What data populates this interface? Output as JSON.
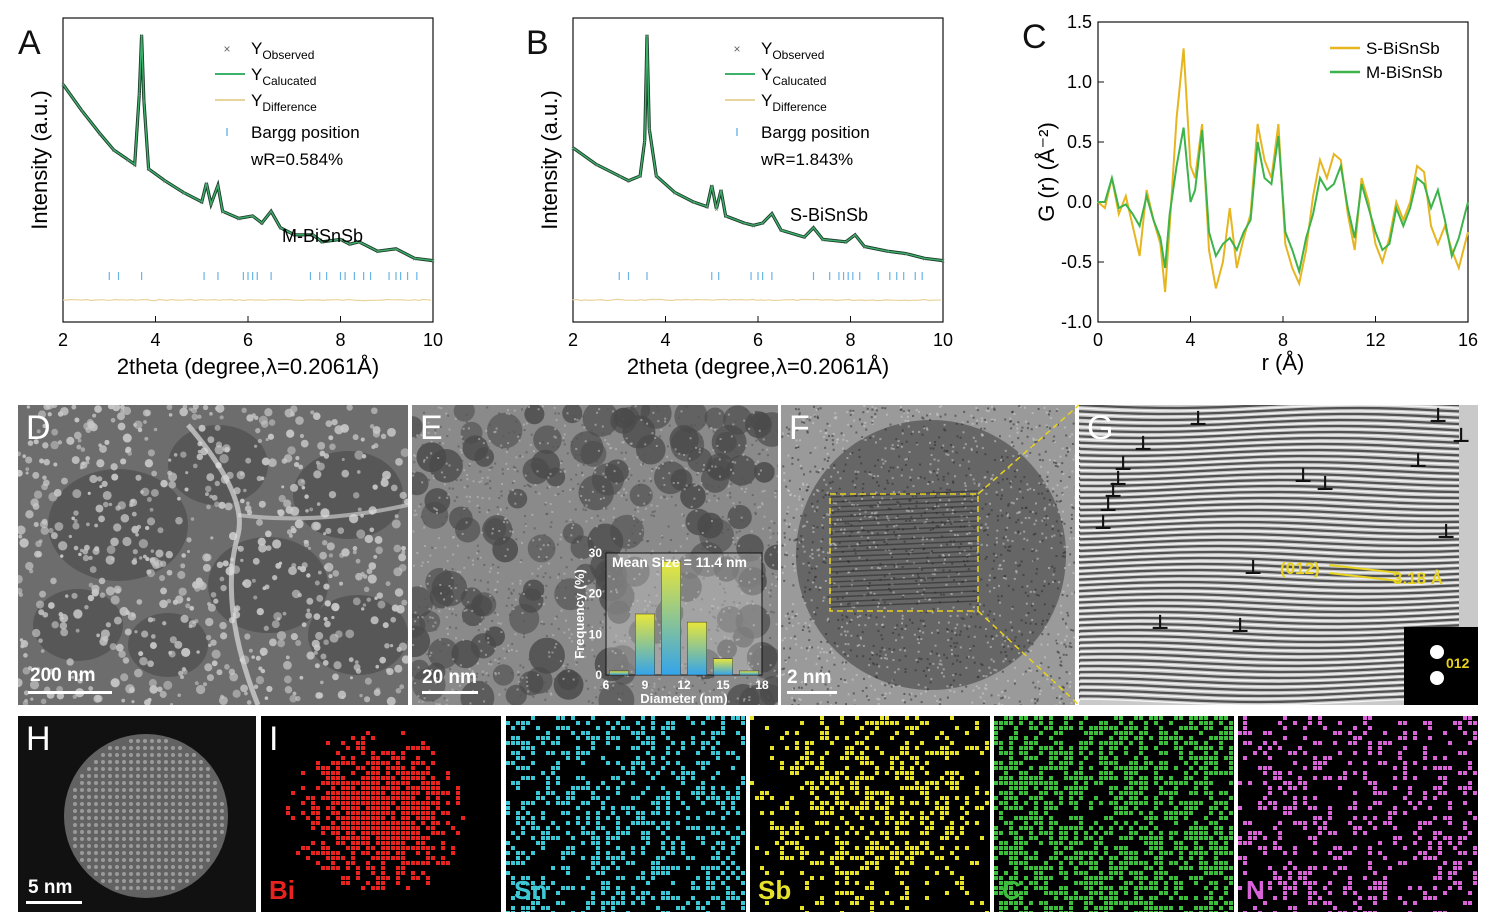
{
  "panels": {
    "A": "A",
    "B": "B",
    "C": "C",
    "D": "D",
    "E": "E",
    "F": "F",
    "G": "G",
    "H": "H",
    "I": "I"
  },
  "legend_xrd": {
    "observed": "Y",
    "observed_sub": "Observed",
    "calculated": "Y",
    "calculated_sub": "Calucated",
    "difference": "Y",
    "difference_sub": "Difference",
    "bragg": "Bargg position"
  },
  "chart_data": [
    {
      "id": "A",
      "type": "line",
      "xlabel": "2theta (degree,λ=0.2061Å)",
      "ylabel": "Intensity (a.u.)",
      "xlim": [
        2,
        10
      ],
      "xticks": [
        "2",
        "4",
        "6",
        "8",
        "10"
      ],
      "sample_label": "M-BiSnSb",
      "wr": "wR=0.584%",
      "baseline": [
        [
          2,
          0.79
        ],
        [
          2.4,
          0.68
        ],
        [
          2.8,
          0.58
        ],
        [
          3.1,
          0.51
        ],
        [
          3.4,
          0.47
        ],
        [
          3.55,
          0.45
        ],
        [
          3.65,
          0.75
        ],
        [
          3.7,
          1.0
        ],
        [
          3.75,
          0.72
        ],
        [
          3.85,
          0.43
        ],
        [
          4.2,
          0.38
        ],
        [
          4.6,
          0.33
        ],
        [
          5.0,
          0.29
        ],
        [
          5.1,
          0.37
        ],
        [
          5.2,
          0.28
        ],
        [
          5.35,
          0.36
        ],
        [
          5.45,
          0.25
        ],
        [
          5.8,
          0.22
        ],
        [
          6.1,
          0.23
        ],
        [
          6.3,
          0.2
        ],
        [
          6.5,
          0.25
        ],
        [
          6.7,
          0.18
        ],
        [
          7.0,
          0.15
        ],
        [
          7.4,
          0.15
        ],
        [
          7.6,
          0.12
        ],
        [
          8.0,
          0.13
        ],
        [
          8.2,
          0.11
        ],
        [
          8.4,
          0.12
        ],
        [
          8.8,
          0.08
        ],
        [
          9.2,
          0.09
        ],
        [
          9.6,
          0.05
        ],
        [
          10,
          0.04
        ]
      ],
      "bragg_positions": [
        3.0,
        3.2,
        3.7,
        5.05,
        5.35,
        5.9,
        6.0,
        6.1,
        6.2,
        6.5,
        7.35,
        7.55,
        7.7,
        8.0,
        8.1,
        8.3,
        8.5,
        8.65,
        9.05,
        9.2,
        9.3,
        9.45,
        9.65
      ]
    },
    {
      "id": "B",
      "type": "line",
      "xlabel": "2theta (degree,λ=0.2061Å)",
      "ylabel": "Intensity (a.u.)",
      "xlim": [
        2,
        10
      ],
      "xticks": [
        "2",
        "4",
        "6",
        "8",
        "10"
      ],
      "sample_label": "S-BiSnSb",
      "wr": "wR=1.843%",
      "baseline": [
        [
          2,
          0.52
        ],
        [
          2.5,
          0.45
        ],
        [
          3.0,
          0.4
        ],
        [
          3.2,
          0.38
        ],
        [
          3.45,
          0.4
        ],
        [
          3.55,
          0.55
        ],
        [
          3.6,
          1.0
        ],
        [
          3.65,
          0.6
        ],
        [
          3.8,
          0.4
        ],
        [
          4.2,
          0.33
        ],
        [
          4.6,
          0.29
        ],
        [
          4.9,
          0.27
        ],
        [
          5.0,
          0.36
        ],
        [
          5.1,
          0.26
        ],
        [
          5.2,
          0.34
        ],
        [
          5.3,
          0.23
        ],
        [
          5.7,
          0.2
        ],
        [
          5.9,
          0.19
        ],
        [
          6.1,
          0.2
        ],
        [
          6.3,
          0.24
        ],
        [
          6.5,
          0.17
        ],
        [
          7.0,
          0.14
        ],
        [
          7.2,
          0.18
        ],
        [
          7.4,
          0.13
        ],
        [
          7.9,
          0.12
        ],
        [
          8.1,
          0.15
        ],
        [
          8.3,
          0.1
        ],
        [
          8.8,
          0.08
        ],
        [
          9.2,
          0.07
        ],
        [
          9.6,
          0.05
        ],
        [
          10,
          0.04
        ]
      ],
      "bragg_positions": [
        3.0,
        3.2,
        3.6,
        5.0,
        5.15,
        5.85,
        6.0,
        6.1,
        6.3,
        7.2,
        7.55,
        7.75,
        7.85,
        7.95,
        8.05,
        8.2,
        8.6,
        8.85,
        9.0,
        9.15,
        9.4,
        9.55
      ]
    },
    {
      "id": "C",
      "type": "line",
      "xlabel": "r (Å)",
      "ylabel": "G (r) (Å⁻²)",
      "xlim": [
        0,
        16
      ],
      "ylim": [
        -1.0,
        1.5
      ],
      "xticks": [
        "0",
        "4",
        "8",
        "12",
        "16"
      ],
      "yticks": [
        "-1.0",
        "-0.5",
        "0.0",
        "0.5",
        "1.0",
        "1.5"
      ],
      "legend_position": "top-right",
      "series": [
        {
          "name": "S-BiSnSb",
          "color": "#e6b520",
          "points": [
            [
              0,
              0
            ],
            [
              0.3,
              -0.05
            ],
            [
              0.6,
              0.2
            ],
            [
              0.9,
              -0.1
            ],
            [
              1.2,
              0.05
            ],
            [
              1.5,
              -0.2
            ],
            [
              1.8,
              -0.45
            ],
            [
              2.1,
              0.1
            ],
            [
              2.4,
              -0.15
            ],
            [
              2.7,
              -0.35
            ],
            [
              2.9,
              -0.75
            ],
            [
              3.1,
              -0.2
            ],
            [
              3.4,
              0.7
            ],
            [
              3.7,
              1.28
            ],
            [
              4.0,
              0.3
            ],
            [
              4.2,
              0.2
            ],
            [
              4.5,
              0.65
            ],
            [
              4.8,
              -0.4
            ],
            [
              5.1,
              -0.72
            ],
            [
              5.4,
              -0.5
            ],
            [
              5.7,
              -0.05
            ],
            [
              6.0,
              -0.55
            ],
            [
              6.3,
              -0.3
            ],
            [
              6.6,
              -0.1
            ],
            [
              6.9,
              0.65
            ],
            [
              7.2,
              0.35
            ],
            [
              7.5,
              0.2
            ],
            [
              7.8,
              0.65
            ],
            [
              8.1,
              -0.35
            ],
            [
              8.4,
              -0.55
            ],
            [
              8.7,
              -0.68
            ],
            [
              9.0,
              -0.4
            ],
            [
              9.3,
              0.05
            ],
            [
              9.6,
              0.35
            ],
            [
              9.9,
              0.2
            ],
            [
              10.2,
              0.4
            ],
            [
              10.5,
              0.35
            ],
            [
              10.8,
              -0.1
            ],
            [
              11.1,
              -0.4
            ],
            [
              11.4,
              0.2
            ],
            [
              11.7,
              0.0
            ],
            [
              12.0,
              -0.35
            ],
            [
              12.3,
              -0.5
            ],
            [
              12.6,
              -0.3
            ],
            [
              12.9,
              0.0
            ],
            [
              13.2,
              -0.15
            ],
            [
              13.5,
              0.0
            ],
            [
              13.8,
              0.3
            ],
            [
              14.1,
              0.25
            ],
            [
              14.4,
              -0.2
            ],
            [
              14.7,
              -0.35
            ],
            [
              15.0,
              -0.2
            ],
            [
              15.3,
              -0.4
            ],
            [
              15.6,
              -0.55
            ],
            [
              16,
              -0.25
            ]
          ]
        },
        {
          "name": "M-BiSnSb",
          "color": "#3cb44b",
          "points": [
            [
              0,
              0
            ],
            [
              0.3,
              0
            ],
            [
              0.6,
              0.2
            ],
            [
              0.9,
              -0.05
            ],
            [
              1.2,
              -0.02
            ],
            [
              1.5,
              -0.1
            ],
            [
              1.8,
              -0.2
            ],
            [
              2.1,
              0.05
            ],
            [
              2.4,
              -0.15
            ],
            [
              2.7,
              -0.3
            ],
            [
              2.9,
              -0.55
            ],
            [
              3.1,
              -0.1
            ],
            [
              3.4,
              0.3
            ],
            [
              3.7,
              0.62
            ],
            [
              4.0,
              0.0
            ],
            [
              4.2,
              0.1
            ],
            [
              4.5,
              0.6
            ],
            [
              4.8,
              -0.25
            ],
            [
              5.1,
              -0.45
            ],
            [
              5.4,
              -0.35
            ],
            [
              5.7,
              -0.3
            ],
            [
              6.0,
              -0.4
            ],
            [
              6.3,
              -0.25
            ],
            [
              6.6,
              -0.15
            ],
            [
              6.9,
              0.5
            ],
            [
              7.2,
              0.2
            ],
            [
              7.5,
              0.15
            ],
            [
              7.8,
              0.55
            ],
            [
              8.1,
              -0.25
            ],
            [
              8.4,
              -0.4
            ],
            [
              8.7,
              -0.58
            ],
            [
              9.0,
              -0.3
            ],
            [
              9.3,
              -0.1
            ],
            [
              9.6,
              0.2
            ],
            [
              9.9,
              0.1
            ],
            [
              10.2,
              0.15
            ],
            [
              10.5,
              0.3
            ],
            [
              10.8,
              -0.05
            ],
            [
              11.1,
              -0.3
            ],
            [
              11.4,
              0.15
            ],
            [
              11.7,
              -0.05
            ],
            [
              12.0,
              -0.25
            ],
            [
              12.3,
              -0.4
            ],
            [
              12.6,
              -0.35
            ],
            [
              12.9,
              -0.05
            ],
            [
              13.2,
              -0.2
            ],
            [
              13.5,
              -0.05
            ],
            [
              13.8,
              0.2
            ],
            [
              14.1,
              0.15
            ],
            [
              14.4,
              -0.05
            ],
            [
              14.7,
              0.1
            ],
            [
              15.0,
              -0.15
            ],
            [
              15.3,
              -0.45
            ],
            [
              15.6,
              -0.3
            ],
            [
              16,
              0.0
            ]
          ]
        }
      ]
    },
    {
      "id": "E-inset",
      "type": "bar",
      "title": "Mean Size = 11.4 nm",
      "xlabel": "Diameter (nm)",
      "ylabel": "Frequency (%)",
      "xlim": [
        6,
        18
      ],
      "ylim": [
        0,
        30
      ],
      "xticks": [
        "6",
        "9",
        "12",
        "15",
        "18"
      ],
      "yticks": [
        "0",
        "10",
        "20",
        "30"
      ],
      "x": [
        7,
        9,
        11,
        13,
        15,
        17
      ],
      "values": [
        1,
        15,
        28,
        13,
        4,
        1
      ]
    }
  ],
  "micrographs": {
    "D": {
      "scale": "200 nm"
    },
    "E": {
      "scale": "20 nm"
    },
    "F": {
      "scale": "2 nm"
    },
    "G": {
      "plane": "(012)",
      "spacing": "3.18 Å",
      "fft_label": "012"
    },
    "H": {
      "scale": "5 nm"
    }
  },
  "eds_maps": [
    {
      "element": "Bi",
      "color": "#e8231f"
    },
    {
      "element": "Sn",
      "color": "#3dc6d4"
    },
    {
      "element": "Sb",
      "color": "#e6e22c"
    },
    {
      "element": "C",
      "color": "#3cbd3c"
    },
    {
      "element": "N",
      "color": "#d763d6"
    }
  ]
}
